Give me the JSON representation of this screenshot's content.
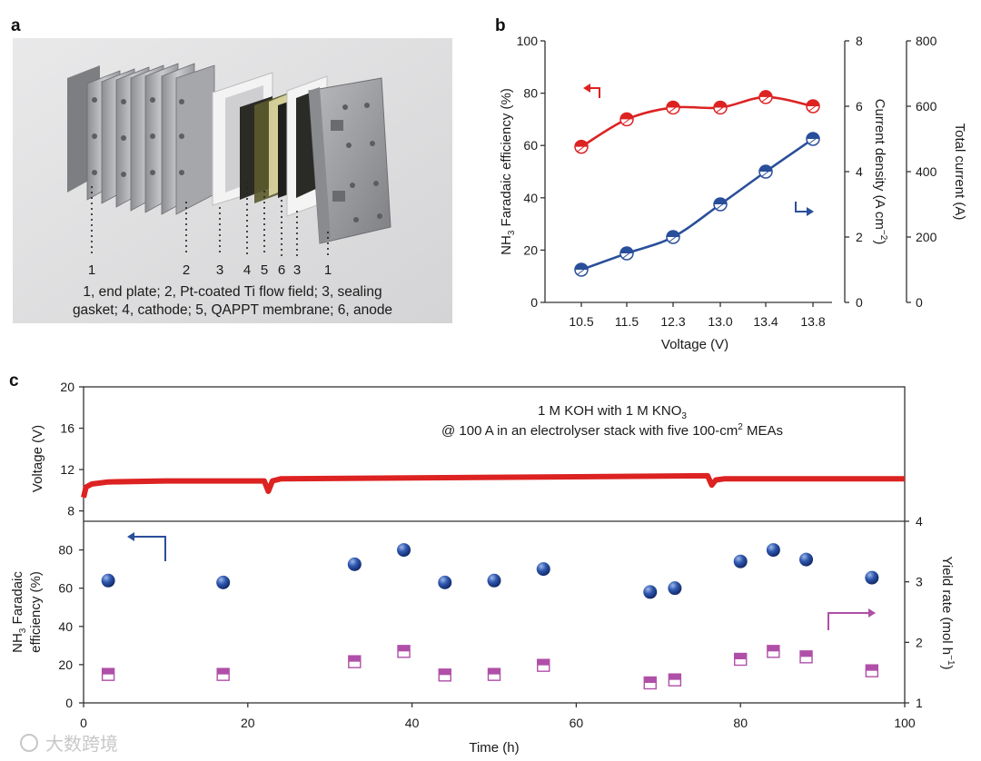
{
  "panel_labels": {
    "a": "a",
    "b": "b",
    "c": "c"
  },
  "panel_a": {
    "callouts": [
      "1",
      "2",
      "3",
      "4",
      "5",
      "6",
      "3",
      "1"
    ],
    "caption_line1": "1, end plate; 2, Pt-coated Ti flow field; 3, sealing",
    "caption_line2": "gasket; 4, cathode; 5, QAPPT membrane; 6, anode"
  },
  "panel_b": {
    "left_axis_label_prefix": "NH",
    "left_axis_label_sub": "3",
    "left_axis_label_suffix": " Faradaic efficiency (%)",
    "mid_axis_label_prefix": "Current density (A cm",
    "mid_axis_label_sup": "−2",
    "mid_axis_label_suffix": ")",
    "right_axis_label": "Total current (A)",
    "x_label": "Voltage (V)"
  },
  "panel_c": {
    "annotation_line1_prefix": "1 M KOH with 1 M KNO",
    "annotation_line1_sub": "3",
    "annotation_line2_prefix": "@ 100 A in an electrolyser stack with five 100-cm",
    "annotation_line2_sup": "2",
    "annotation_line2_suffix": " MEAs",
    "top_y_label": "Voltage (V)",
    "bottom_y_label_line1_prefix": "NH",
    "bottom_y_label_line1_sub": "3",
    "bottom_y_label_line1_suffix": " Faradaic",
    "bottom_y_label_line2": "efficiency (%)",
    "right_y_label_prefix": "Yield rate (mol h",
    "right_y_label_sup": "−1",
    "right_y_label_suffix": ")",
    "x_label": "Time (h)"
  },
  "watermark": "大数跨境",
  "colors": {
    "red": "#dd2222",
    "blue": "#2a4f9a",
    "magenta": "#b04fa8",
    "axis": "#333333"
  },
  "chart_data": [
    {
      "type": "line",
      "panel": "b",
      "categories": [
        "10.5",
        "11.5",
        "12.3",
        "13.0",
        "13.4",
        "13.8"
      ],
      "series": [
        {
          "axis": "left",
          "values": [
            59.5,
            70,
            74.5,
            74.5,
            78.5,
            75
          ],
          "color": "#dd2222",
          "marker": "circle"
        },
        {
          "axis": "middle",
          "values": [
            1.0,
            1.5,
            2.0,
            3.0,
            4.0,
            5.0
          ],
          "color": "#2a4f9a",
          "marker": "circle"
        }
      ],
      "axes": {
        "left": {
          "label": "NH3 Faradaic efficiency (%)",
          "ylim": [
            0,
            100
          ],
          "ticks": [
            0,
            20,
            40,
            60,
            80,
            100
          ]
        },
        "middle": {
          "label": "Current density (A cm−2)",
          "ylim": [
            0,
            8
          ],
          "ticks": [
            0,
            2,
            4,
            6,
            8
          ]
        },
        "right": {
          "label": "Total current (A)",
          "ylim": [
            0,
            800
          ],
          "ticks": [
            0,
            200,
            400,
            600,
            800
          ]
        },
        "x": {
          "label": "Voltage (V)"
        }
      },
      "grid": false
    },
    {
      "type": "line",
      "panel": "c-top",
      "xlabel": "Time (h)",
      "ylabel": "Voltage (V)",
      "xlim": [
        0,
        100
      ],
      "ylim": [
        7,
        20
      ],
      "yticks": [
        8,
        12,
        16,
        20
      ],
      "series": [
        {
          "color": "#dd2222",
          "x": [
            0,
            0.3,
            1,
            3,
            10,
            20,
            22,
            22.5,
            23,
            24,
            40,
            60,
            76,
            76.5,
            77,
            78,
            90,
            100
          ],
          "y": [
            9.3,
            10.3,
            10.6,
            10.8,
            10.9,
            10.9,
            10.9,
            9.9,
            10.9,
            11.1,
            11.2,
            11.3,
            11.4,
            10.5,
            11.0,
            11.1,
            11.1,
            11.1
          ]
        }
      ],
      "grid": false
    },
    {
      "type": "scatter",
      "panel": "c-bottom",
      "xlabel": "Time (h)",
      "xlim": [
        0,
        100
      ],
      "xticks": [
        0,
        20,
        40,
        60,
        80,
        100
      ],
      "series": [
        {
          "axis": "left",
          "label": "NH3 Faradaic efficiency (%)",
          "color": "#2a4f9a",
          "marker": "sphere",
          "x": [
            3,
            17,
            33,
            39,
            44,
            50,
            56,
            69,
            72,
            80,
            84,
            88,
            96
          ],
          "y": [
            64,
            63,
            72.5,
            80,
            63,
            64,
            70,
            58,
            60,
            74,
            80,
            75,
            65.5
          ]
        },
        {
          "axis": "right",
          "label": "Yield rate (mol h−1)",
          "color": "#b04fa8",
          "marker": "half-filled-square",
          "x": [
            3,
            17,
            33,
            39,
            44,
            50,
            56,
            69,
            72,
            80,
            84,
            88,
            96
          ],
          "y": [
            1.47,
            1.47,
            1.68,
            1.85,
            1.46,
            1.47,
            1.62,
            1.33,
            1.38,
            1.72,
            1.85,
            1.76,
            1.53
          ]
        }
      ],
      "axes": {
        "left": {
          "ylim": [
            0,
            95
          ],
          "ticks": [
            0,
            20,
            40,
            60,
            80
          ]
        },
        "right": {
          "ylim": [
            1,
            4
          ],
          "ticks": [
            1,
            2,
            3,
            4
          ]
        }
      },
      "grid": false
    }
  ]
}
